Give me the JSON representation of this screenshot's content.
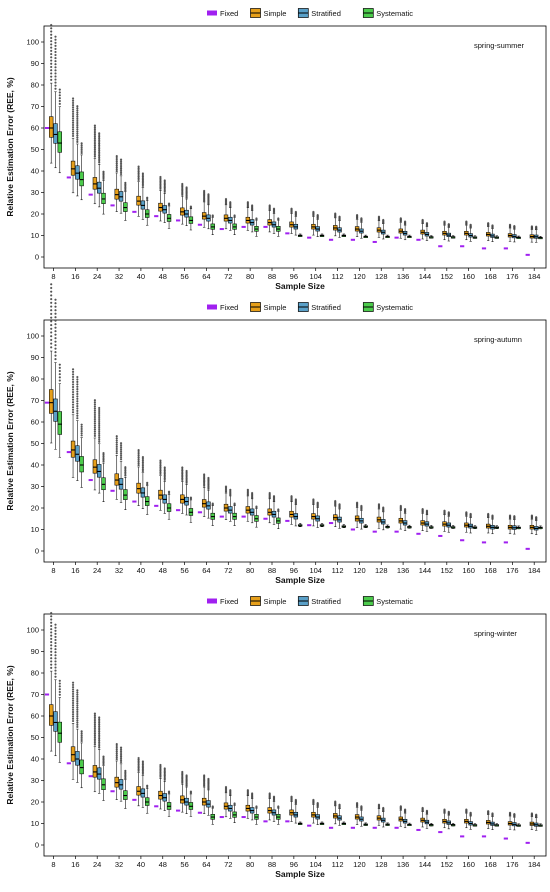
{
  "legend": {
    "entries": [
      {
        "name": "Fixed",
        "color": "#a020f0"
      },
      {
        "name": "Simple",
        "color": "#e69f1a"
      },
      {
        "name": "Stratified",
        "color": "#5aa0c8"
      },
      {
        "name": "Systematic",
        "color": "#4ccc4c"
      }
    ]
  },
  "chart_data": [
    {
      "type": "box",
      "panel_label": "spring-summer",
      "xlabel": "Sample Size",
      "ylabel": "Relative Estimation Error (REE, %)",
      "ylim": [
        0,
        100
      ],
      "yticks": [
        0,
        10,
        20,
        30,
        40,
        50,
        60,
        70,
        80,
        90,
        100
      ],
      "categories": [
        8,
        16,
        24,
        32,
        40,
        48,
        56,
        64,
        72,
        80,
        88,
        96,
        104,
        112,
        120,
        128,
        136,
        144,
        152,
        160,
        168,
        176,
        184
      ],
      "fixed": [
        60,
        37,
        29,
        24,
        21,
        19,
        17,
        15,
        13,
        14,
        14,
        11,
        9,
        8,
        8,
        7,
        9,
        8,
        5,
        5,
        4,
        4,
        1
      ],
      "simple": [
        60,
        41,
        34,
        29,
        26,
        23,
        21,
        19,
        18,
        17,
        16,
        15,
        14,
        13.5,
        13,
        12.5,
        12,
        11.5,
        11,
        11,
        10.5,
        10,
        9.5
      ],
      "stratified": [
        57,
        39,
        32,
        28,
        24,
        22,
        20,
        18,
        17,
        16,
        15,
        14,
        13,
        12.5,
        12,
        11.5,
        11,
        10.5,
        10.2,
        10,
        9.8,
        9.6,
        9.4
      ],
      "systematic": [
        53,
        36,
        27,
        23,
        20,
        18,
        17,
        14,
        14,
        13,
        13,
        10,
        10,
        10,
        9.5,
        9.5,
        9.5,
        9.3,
        9.3,
        9.2,
        9.2,
        9.1,
        9.0
      ]
    },
    {
      "type": "box",
      "panel_label": "spring-autumn",
      "xlabel": "Sample Size",
      "ylabel": "Relative Estimation Error (REE, %)",
      "ylim": [
        0,
        100
      ],
      "yticks": [
        0,
        10,
        20,
        30,
        40,
        50,
        60,
        70,
        80,
        90,
        100
      ],
      "categories": [
        8,
        16,
        24,
        32,
        40,
        48,
        56,
        64,
        72,
        80,
        88,
        96,
        104,
        112,
        120,
        128,
        136,
        144,
        152,
        160,
        168,
        176,
        184
      ],
      "fixed": [
        69,
        46,
        33,
        28,
        23,
        21,
        19,
        18,
        16,
        16,
        15,
        14,
        12,
        13,
        10,
        9,
        9,
        8,
        7,
        5,
        4,
        4,
        1
      ],
      "simple": [
        69,
        47,
        39,
        33,
        29,
        26,
        24,
        22,
        20,
        19,
        18,
        17,
        16,
        15.5,
        15,
        14.5,
        14,
        13,
        12.5,
        12,
        11.5,
        11,
        11
      ],
      "stratified": [
        65,
        45,
        37,
        31,
        27,
        24,
        23,
        21,
        19,
        18,
        17,
        16,
        15,
        14.5,
        14,
        13.5,
        13,
        12.5,
        12,
        11.5,
        11,
        10.8,
        10.5
      ],
      "systematic": [
        59,
        40,
        31,
        26,
        23,
        20,
        18,
        16,
        16,
        15,
        14,
        12,
        12,
        11.5,
        11.5,
        11.3,
        11.2,
        11.1,
        11.1,
        11.0,
        11.0,
        10.9,
        10.9
      ]
    },
    {
      "type": "box",
      "panel_label": "spring-winter",
      "xlabel": "Sample Size",
      "ylabel": "Relative Estimation Error (REE, %)",
      "ylim": [
        0,
        100
      ],
      "yticks": [
        0,
        10,
        20,
        30,
        40,
        50,
        60,
        70,
        80,
        90,
        100
      ],
      "categories": [
        8,
        16,
        24,
        32,
        40,
        48,
        56,
        64,
        72,
        80,
        88,
        96,
        104,
        112,
        120,
        128,
        136,
        144,
        152,
        160,
        168,
        176,
        184
      ],
      "fixed": [
        70,
        38,
        32,
        25,
        21,
        18,
        16,
        15,
        13,
        13,
        11,
        11,
        9,
        8,
        8,
        8,
        8,
        7,
        6,
        4,
        4,
        3,
        1
      ],
      "simple": [
        60,
        42,
        34,
        29,
        25,
        23,
        21,
        20,
        18,
        17,
        16,
        15,
        14,
        13.5,
        13,
        12.5,
        12,
        11.5,
        11,
        11,
        10.5,
        10,
        9.8
      ],
      "stratified": [
        57,
        40,
        33,
        28,
        24,
        22,
        20,
        19,
        17,
        16,
        15,
        14,
        13,
        12.5,
        12,
        11.5,
        11,
        10.6,
        10.3,
        10,
        9.8,
        9.6,
        9.4
      ],
      "systematic": [
        52,
        36,
        28,
        23,
        20,
        18,
        18,
        13,
        14,
        13,
        13,
        10,
        10,
        10,
        9.6,
        9.6,
        9.5,
        9.4,
        9.4,
        9.3,
        9.3,
        9.2,
        9.2
      ]
    }
  ]
}
